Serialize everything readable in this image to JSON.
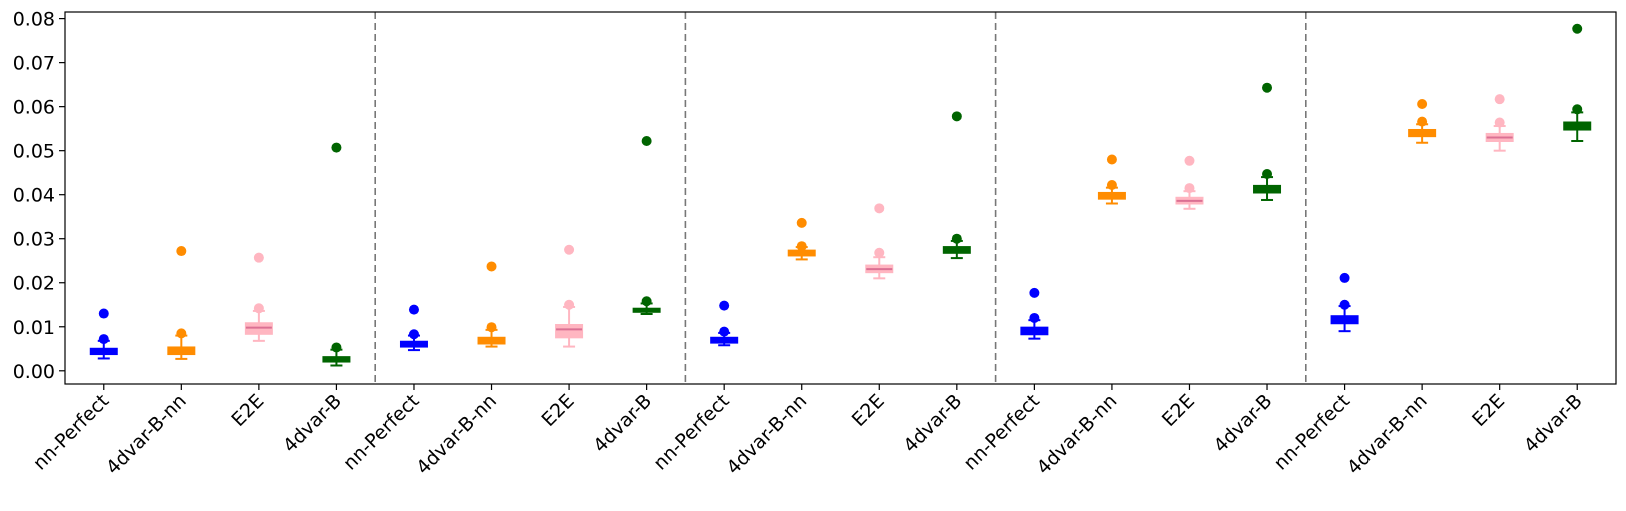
{
  "chart_data": {
    "type": "box",
    "title": "",
    "xlabel": "",
    "ylabel": "",
    "ylim": [
      -0.003,
      0.0815
    ],
    "yticks": [
      0.0,
      0.01,
      0.02,
      0.03,
      0.04,
      0.05,
      0.06,
      0.07,
      0.08
    ],
    "ytick_labels": [
      "0.00",
      "0.01",
      "0.02",
      "0.03",
      "0.04",
      "0.05",
      "0.06",
      "0.07",
      "0.08"
    ],
    "grid": false,
    "group_separators": "dashed",
    "categories": [
      "nn-Perfect",
      "4dvar-B-nn",
      "E2E",
      "4dvar-B"
    ],
    "colors": {
      "nn-Perfect": "#0000ff",
      "4dvar-B-nn": "#ff8c00",
      "E2E": "#ffb6c1",
      "4dvar-B": "#006400",
      "median": "#db7093"
    },
    "groups": [
      {
        "boxes": [
          {
            "category": "nn-Perfect",
            "whislo": 0.0028,
            "q1": 0.0038,
            "median": 0.0043,
            "q3": 0.005,
            "whishi": 0.0068,
            "fliers": [
              0.0072,
              0.013
            ]
          },
          {
            "category": "4dvar-B-nn",
            "whislo": 0.0027,
            "q1": 0.0038,
            "median": 0.0044,
            "q3": 0.0053,
            "whishi": 0.008,
            "fliers": [
              0.0085,
              0.0272
            ]
          },
          {
            "category": "E2E",
            "whislo": 0.0068,
            "q1": 0.0084,
            "median": 0.0098,
            "q3": 0.0108,
            "whishi": 0.0136,
            "fliers": [
              0.0142,
              0.0257
            ]
          },
          {
            "category": "4dvar-B",
            "whislo": 0.0012,
            "q1": 0.0021,
            "median": 0.0026,
            "q3": 0.0031,
            "whishi": 0.0048,
            "fliers": [
              0.0053,
              0.0507
            ]
          }
        ]
      },
      {
        "boxes": [
          {
            "category": "nn-Perfect",
            "whislo": 0.0047,
            "q1": 0.0055,
            "median": 0.006,
            "q3": 0.0066,
            "whishi": 0.008,
            "fliers": [
              0.0083,
              0.0139
            ]
          },
          {
            "category": "4dvar-B-nn",
            "whislo": 0.0055,
            "q1": 0.0062,
            "median": 0.0068,
            "q3": 0.0075,
            "whishi": 0.0093,
            "fliers": [
              0.0099,
              0.0237
            ]
          },
          {
            "category": "E2E",
            "whislo": 0.0055,
            "q1": 0.0076,
            "median": 0.0094,
            "q3": 0.0104,
            "whishi": 0.0145,
            "fliers": [
              0.015,
              0.0275
            ]
          },
          {
            "category": "4dvar-B",
            "whislo": 0.0129,
            "q1": 0.0134,
            "median": 0.0138,
            "q3": 0.0141,
            "whishi": 0.0153,
            "fliers": [
              0.0158,
              0.0522
            ]
          }
        ]
      },
      {
        "boxes": [
          {
            "category": "nn-Perfect",
            "whislo": 0.0058,
            "q1": 0.0064,
            "median": 0.0069,
            "q3": 0.0075,
            "whishi": 0.0086,
            "fliers": [
              0.0089,
              0.0148
            ]
          },
          {
            "category": "4dvar-B-nn",
            "whislo": 0.0253,
            "q1": 0.0262,
            "median": 0.0268,
            "q3": 0.0273,
            "whishi": 0.0281,
            "fliers": [
              0.0283,
              0.0336
            ]
          },
          {
            "category": "E2E",
            "whislo": 0.021,
            "q1": 0.0224,
            "median": 0.0231,
            "q3": 0.0239,
            "whishi": 0.0258,
            "fliers": [
              0.0268,
              0.0369
            ]
          },
          {
            "category": "4dvar-B",
            "whislo": 0.0256,
            "q1": 0.0268,
            "median": 0.0274,
            "q3": 0.0281,
            "whishi": 0.0295,
            "fliers": [
              0.03,
              0.0578
            ]
          }
        ]
      },
      {
        "boxes": [
          {
            "category": "nn-Perfect",
            "whislo": 0.0073,
            "q1": 0.0083,
            "median": 0.009,
            "q3": 0.0098,
            "whishi": 0.0115,
            "fliers": [
              0.012,
              0.0177
            ]
          },
          {
            "category": "4dvar-B-nn",
            "whislo": 0.038,
            "q1": 0.0391,
            "median": 0.0398,
            "q3": 0.0404,
            "whishi": 0.0416,
            "fliers": [
              0.0422,
              0.048
            ]
          },
          {
            "category": "E2E",
            "whislo": 0.0368,
            "q1": 0.038,
            "median": 0.0386,
            "q3": 0.0393,
            "whishi": 0.0408,
            "fliers": [
              0.0415,
              0.0477
            ]
          },
          {
            "category": "4dvar-B",
            "whislo": 0.0388,
            "q1": 0.0405,
            "median": 0.0413,
            "q3": 0.042,
            "whishi": 0.044,
            "fliers": [
              0.0447,
              0.0643
            ]
          }
        ]
      },
      {
        "boxes": [
          {
            "category": "nn-Perfect",
            "whislo": 0.009,
            "q1": 0.0108,
            "median": 0.0116,
            "q3": 0.0124,
            "whishi": 0.0147,
            "fliers": [
              0.015,
              0.0211
            ]
          },
          {
            "category": "4dvar-B-nn",
            "whislo": 0.0518,
            "q1": 0.0533,
            "median": 0.054,
            "q3": 0.0547,
            "whishi": 0.056,
            "fliers": [
              0.0566,
              0.0606
            ]
          },
          {
            "category": "E2E",
            "whislo": 0.05,
            "q1": 0.0522,
            "median": 0.053,
            "q3": 0.0538,
            "whishi": 0.0556,
            "fliers": [
              0.0564,
              0.0617
            ]
          },
          {
            "category": "4dvar-B",
            "whislo": 0.0522,
            "q1": 0.0548,
            "median": 0.0556,
            "q3": 0.0564,
            "whishi": 0.0587,
            "fliers": [
              0.0594,
              0.0777
            ]
          }
        ]
      }
    ]
  }
}
